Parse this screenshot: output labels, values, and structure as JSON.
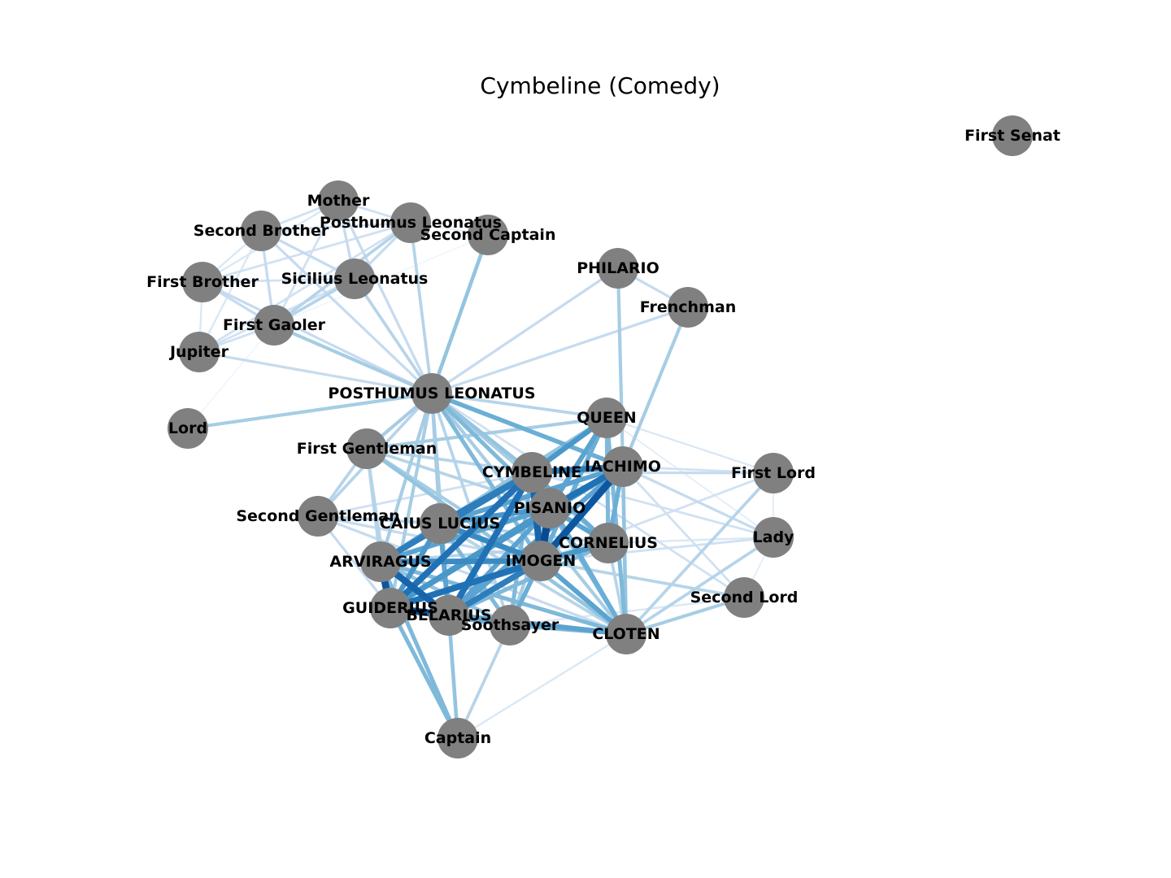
{
  "title": "Cymbeline (Comedy)",
  "style": {
    "node_color": "#808080",
    "label_color": "#000000",
    "edge_colormap": "Blues",
    "edge_colormap_stops": [
      "#f7fbff",
      "#deebf7",
      "#c6dbef",
      "#9ecae1",
      "#6baed6",
      "#4292c6",
      "#2171b5",
      "#08519c",
      "#08306b"
    ]
  },
  "nodes": [
    {
      "id": "first_senat",
      "label": "First Senat"
    },
    {
      "id": "mother",
      "label": "Mother"
    },
    {
      "id": "second_brother",
      "label": "Second Brother"
    },
    {
      "id": "posthumus_small",
      "label": "Posthumus Leonatus"
    },
    {
      "id": "second_captain",
      "label": "Second Captain"
    },
    {
      "id": "first_brother",
      "label": "First Brother"
    },
    {
      "id": "sicilius",
      "label": "Sicilius Leonatus"
    },
    {
      "id": "philario",
      "label": "PHILARIO"
    },
    {
      "id": "frenchman",
      "label": "Frenchman"
    },
    {
      "id": "first_gaoler",
      "label": "First Gaoler"
    },
    {
      "id": "jupiter",
      "label": "Jupiter"
    },
    {
      "id": "posthumus",
      "label": "POSTHUMUS LEONATUS"
    },
    {
      "id": "lord",
      "label": "Lord"
    },
    {
      "id": "queen",
      "label": "QUEEN"
    },
    {
      "id": "first_gentleman",
      "label": "First Gentleman"
    },
    {
      "id": "iachimo",
      "label": "IACHIMO"
    },
    {
      "id": "cymbeline",
      "label": "CYMBELINE"
    },
    {
      "id": "first_lord",
      "label": "First Lord"
    },
    {
      "id": "pisanio",
      "label": "PISANIO"
    },
    {
      "id": "second_gentleman",
      "label": "Second Gentleman"
    },
    {
      "id": "caius_lucius",
      "label": "CAIUS LUCIUS"
    },
    {
      "id": "lady",
      "label": "Lady"
    },
    {
      "id": "cornelius",
      "label": "CORNELIUS"
    },
    {
      "id": "imogen",
      "label": "IMOGEN"
    },
    {
      "id": "arviragus",
      "label": "ARVIRAGUS"
    },
    {
      "id": "second_lord",
      "label": "Second Lord"
    },
    {
      "id": "guiderius",
      "label": "GUIDERIUS"
    },
    {
      "id": "belarius",
      "label": "BELARIUS"
    },
    {
      "id": "soothsayer",
      "label": "Soothsayer"
    },
    {
      "id": "cloten",
      "label": "CLOTEN"
    },
    {
      "id": "captain",
      "label": "Captain"
    }
  ],
  "edges": [
    {
      "source": "mother",
      "target": "second_brother",
      "weight": 0.2
    },
    {
      "source": "mother",
      "target": "posthumus_small",
      "weight": 0.2
    },
    {
      "source": "mother",
      "target": "sicilius",
      "weight": 0.25
    },
    {
      "source": "mother",
      "target": "first_gaoler",
      "weight": 0.2
    },
    {
      "source": "mother",
      "target": "first_brother",
      "weight": 0.15
    },
    {
      "source": "mother",
      "target": "posthumus",
      "weight": 0.25
    },
    {
      "source": "second_brother",
      "target": "posthumus_small",
      "weight": 0.2
    },
    {
      "source": "second_brother",
      "target": "sicilius",
      "weight": 0.25
    },
    {
      "source": "second_brother",
      "target": "first_gaoler",
      "weight": 0.25
    },
    {
      "source": "second_brother",
      "target": "first_brother",
      "weight": 0.15
    },
    {
      "source": "second_brother",
      "target": "jupiter",
      "weight": 0.15
    },
    {
      "source": "second_brother",
      "target": "posthumus",
      "weight": 0.25
    },
    {
      "source": "posthumus_small",
      "target": "sicilius",
      "weight": 0.25
    },
    {
      "source": "posthumus_small",
      "target": "first_gaoler",
      "weight": 0.3
    },
    {
      "source": "posthumus_small",
      "target": "first_brother",
      "weight": 0.2
    },
    {
      "source": "posthumus_small",
      "target": "jupiter",
      "weight": 0.2
    },
    {
      "source": "posthumus_small",
      "target": "posthumus",
      "weight": 0.3
    },
    {
      "source": "posthumus_small",
      "target": "second_captain",
      "weight": 0.1
    },
    {
      "source": "second_captain",
      "target": "posthumus",
      "weight": 0.4
    },
    {
      "source": "second_captain",
      "target": "first_gaoler",
      "weight": 0.05
    },
    {
      "source": "first_brother",
      "target": "sicilius",
      "weight": 0.2
    },
    {
      "source": "first_brother",
      "target": "first_gaoler",
      "weight": 0.25
    },
    {
      "source": "first_brother",
      "target": "jupiter",
      "weight": 0.15
    },
    {
      "source": "first_brother",
      "target": "posthumus",
      "weight": 0.25
    },
    {
      "source": "sicilius",
      "target": "first_gaoler",
      "weight": 0.3
    },
    {
      "source": "sicilius",
      "target": "jupiter",
      "weight": 0.2
    },
    {
      "source": "sicilius",
      "target": "posthumus",
      "weight": 0.3
    },
    {
      "source": "first_gaoler",
      "target": "jupiter",
      "weight": 0.2
    },
    {
      "source": "first_gaoler",
      "target": "posthumus",
      "weight": 0.35
    },
    {
      "source": "jupiter",
      "target": "posthumus",
      "weight": 0.25
    },
    {
      "source": "lord",
      "target": "posthumus",
      "weight": 0.35
    },
    {
      "source": "lord",
      "target": "first_gaoler",
      "weight": 0.05
    },
    {
      "source": "philario",
      "target": "frenchman",
      "weight": 0.25
    },
    {
      "source": "philario",
      "target": "posthumus",
      "weight": 0.25
    },
    {
      "source": "philario",
      "target": "iachimo",
      "weight": 0.35
    },
    {
      "source": "frenchman",
      "target": "posthumus",
      "weight": 0.25
    },
    {
      "source": "frenchman",
      "target": "iachimo",
      "weight": 0.35
    },
    {
      "source": "posthumus",
      "target": "queen",
      "weight": 0.3
    },
    {
      "source": "posthumus",
      "target": "first_gentleman",
      "weight": 0.35
    },
    {
      "source": "posthumus",
      "target": "iachimo",
      "weight": 0.5
    },
    {
      "source": "posthumus",
      "target": "cymbeline",
      "weight": 0.4
    },
    {
      "source": "posthumus",
      "target": "pisanio",
      "weight": 0.45
    },
    {
      "source": "posthumus",
      "target": "imogen",
      "weight": 0.45
    },
    {
      "source": "posthumus",
      "target": "second_gentleman",
      "weight": 0.3
    },
    {
      "source": "posthumus",
      "target": "caius_lucius",
      "weight": 0.35
    },
    {
      "source": "posthumus",
      "target": "cornelius",
      "weight": 0.35
    },
    {
      "source": "posthumus",
      "target": "arviragus",
      "weight": 0.35
    },
    {
      "source": "posthumus",
      "target": "guiderius",
      "weight": 0.35
    },
    {
      "source": "posthumus",
      "target": "belarius",
      "weight": 0.35
    },
    {
      "source": "posthumus",
      "target": "soothsayer",
      "weight": 0.3
    },
    {
      "source": "posthumus",
      "target": "cloten",
      "weight": 0.35
    },
    {
      "source": "posthumus",
      "target": "second_lord",
      "weight": 0.2
    },
    {
      "source": "queen",
      "target": "first_gentleman",
      "weight": 0.35
    },
    {
      "source": "queen",
      "target": "cymbeline",
      "weight": 0.6
    },
    {
      "source": "queen",
      "target": "pisanio",
      "weight": 0.55
    },
    {
      "source": "queen",
      "target": "imogen",
      "weight": 0.5
    },
    {
      "source": "queen",
      "target": "cloten",
      "weight": 0.45
    },
    {
      "source": "queen",
      "target": "cornelius",
      "weight": 0.45
    },
    {
      "source": "queen",
      "target": "caius_lucius",
      "weight": 0.4
    },
    {
      "source": "queen",
      "target": "first_lord",
      "weight": 0.15
    },
    {
      "source": "queen",
      "target": "lady",
      "weight": 0.1
    },
    {
      "source": "first_gentleman",
      "target": "second_gentleman",
      "weight": 0.3
    },
    {
      "source": "first_gentleman",
      "target": "imogen",
      "weight": 0.35
    },
    {
      "source": "first_gentleman",
      "target": "cymbeline",
      "weight": 0.3
    },
    {
      "source": "first_gentleman",
      "target": "pisanio",
      "weight": 0.3
    },
    {
      "source": "first_gentleman",
      "target": "cloten",
      "weight": 0.4
    },
    {
      "source": "first_gentleman",
      "target": "guiderius",
      "weight": 0.3
    },
    {
      "source": "first_gentleman",
      "target": "arviragus",
      "weight": 0.3
    },
    {
      "source": "iachimo",
      "target": "imogen",
      "weight": 0.85
    },
    {
      "source": "iachimo",
      "target": "pisanio",
      "weight": 0.75
    },
    {
      "source": "iachimo",
      "target": "cymbeline",
      "weight": 0.7
    },
    {
      "source": "iachimo",
      "target": "guiderius",
      "weight": 0.6
    },
    {
      "source": "iachimo",
      "target": "belarius",
      "weight": 0.55
    },
    {
      "source": "iachimo",
      "target": "cloten",
      "weight": 0.4
    },
    {
      "source": "iachimo",
      "target": "first_lord",
      "weight": 0.2
    },
    {
      "source": "iachimo",
      "target": "lady",
      "weight": 0.25
    },
    {
      "source": "iachimo",
      "target": "second_lord",
      "weight": 0.2
    },
    {
      "source": "iachimo",
      "target": "caius_lucius",
      "weight": 0.55
    },
    {
      "source": "iachimo",
      "target": "cornelius",
      "weight": 0.5
    },
    {
      "source": "cymbeline",
      "target": "pisanio",
      "weight": 0.8
    },
    {
      "source": "cymbeline",
      "target": "imogen",
      "weight": 0.8
    },
    {
      "source": "cymbeline",
      "target": "caius_lucius",
      "weight": 0.7
    },
    {
      "source": "cymbeline",
      "target": "guiderius",
      "weight": 0.75
    },
    {
      "source": "cymbeline",
      "target": "arviragus",
      "weight": 0.7
    },
    {
      "source": "cymbeline",
      "target": "belarius",
      "weight": 0.75
    },
    {
      "source": "cymbeline",
      "target": "cornelius",
      "weight": 0.5
    },
    {
      "source": "cymbeline",
      "target": "cloten",
      "weight": 0.5
    },
    {
      "source": "cymbeline",
      "target": "soothsayer",
      "weight": 0.45
    },
    {
      "source": "cymbeline",
      "target": "first_lord",
      "weight": 0.25
    },
    {
      "source": "cymbeline",
      "target": "lady",
      "weight": 0.2
    },
    {
      "source": "first_lord",
      "target": "cloten",
      "weight": 0.3
    },
    {
      "source": "first_lord",
      "target": "imogen",
      "weight": 0.2
    },
    {
      "source": "first_lord",
      "target": "lady",
      "weight": 0.1
    },
    {
      "source": "pisanio",
      "target": "imogen",
      "weight": 0.9
    },
    {
      "source": "pisanio",
      "target": "caius_lucius",
      "weight": 0.6
    },
    {
      "source": "pisanio",
      "target": "cornelius",
      "weight": 0.55
    },
    {
      "source": "pisanio",
      "target": "guiderius",
      "weight": 0.6
    },
    {
      "source": "pisanio",
      "target": "belarius",
      "weight": 0.55
    },
    {
      "source": "pisanio",
      "target": "cloten",
      "weight": 0.45
    },
    {
      "source": "pisanio",
      "target": "arviragus",
      "weight": 0.55
    },
    {
      "source": "pisanio",
      "target": "soothsayer",
      "weight": 0.35
    },
    {
      "source": "second_gentleman",
      "target": "caius_lucius",
      "weight": 0.3
    },
    {
      "source": "second_gentleman",
      "target": "imogen",
      "weight": 0.25
    },
    {
      "source": "second_gentleman",
      "target": "cymbeline",
      "weight": 0.2
    },
    {
      "source": "second_gentleman",
      "target": "cloten",
      "weight": 0.25
    },
    {
      "source": "second_gentleman",
      "target": "guiderius",
      "weight": 0.25
    },
    {
      "source": "caius_lucius",
      "target": "imogen",
      "weight": 0.65
    },
    {
      "source": "caius_lucius",
      "target": "guiderius",
      "weight": 0.6
    },
    {
      "source": "caius_lucius",
      "target": "belarius",
      "weight": 0.55
    },
    {
      "source": "caius_lucius",
      "target": "soothsayer",
      "weight": 0.45
    },
    {
      "source": "caius_lucius",
      "target": "arviragus",
      "weight": 0.55
    },
    {
      "source": "caius_lucius",
      "target": "cornelius",
      "weight": 0.3
    },
    {
      "source": "caius_lucius",
      "target": "cloten",
      "weight": 0.3
    },
    {
      "source": "lady",
      "target": "cloten",
      "weight": 0.3
    },
    {
      "source": "lady",
      "target": "imogen",
      "weight": 0.2
    },
    {
      "source": "lady",
      "target": "cornelius",
      "weight": 0.15
    },
    {
      "source": "lady",
      "target": "second_lord",
      "weight": 0.1
    },
    {
      "source": "cornelius",
      "target": "imogen",
      "weight": 0.6
    },
    {
      "source": "cornelius",
      "target": "guiderius",
      "weight": 0.45
    },
    {
      "source": "cornelius",
      "target": "belarius",
      "weight": 0.45
    },
    {
      "source": "cornelius",
      "target": "cloten",
      "weight": 0.3
    },
    {
      "source": "cornelius",
      "target": "arviragus",
      "weight": 0.3
    },
    {
      "source": "imogen",
      "target": "arviragus",
      "weight": 0.65
    },
    {
      "source": "imogen",
      "target": "guiderius",
      "weight": 0.75
    },
    {
      "source": "imogen",
      "target": "belarius",
      "weight": 0.7
    },
    {
      "source": "imogen",
      "target": "soothsayer",
      "weight": 0.5
    },
    {
      "source": "imogen",
      "target": "cloten",
      "weight": 0.55
    },
    {
      "source": "imogen",
      "target": "second_lord",
      "weight": 0.3
    },
    {
      "source": "arviragus",
      "target": "guiderius",
      "weight": 0.85
    },
    {
      "source": "arviragus",
      "target": "belarius",
      "weight": 0.8
    },
    {
      "source": "arviragus",
      "target": "soothsayer",
      "weight": 0.4
    },
    {
      "source": "arviragus",
      "target": "cloten",
      "weight": 0.45
    },
    {
      "source": "arviragus",
      "target": "captain",
      "weight": 0.45
    },
    {
      "source": "second_lord",
      "target": "cloten",
      "weight": 0.35
    },
    {
      "source": "second_lord",
      "target": "soothsayer",
      "weight": 0.15
    },
    {
      "source": "guiderius",
      "target": "belarius",
      "weight": 0.85
    },
    {
      "source": "guiderius",
      "target": "soothsayer",
      "weight": 0.5
    },
    {
      "source": "guiderius",
      "target": "cloten",
      "weight": 0.55
    },
    {
      "source": "guiderius",
      "target": "captain",
      "weight": 0.45
    },
    {
      "source": "belarius",
      "target": "soothsayer",
      "weight": 0.45
    },
    {
      "source": "belarius",
      "target": "cloten",
      "weight": 0.5
    },
    {
      "source": "belarius",
      "target": "captain",
      "weight": 0.4
    },
    {
      "source": "soothsayer",
      "target": "cloten",
      "weight": 0.45
    },
    {
      "source": "soothsayer",
      "target": "captain",
      "weight": 0.3
    },
    {
      "source": "cloten",
      "target": "captain",
      "weight": 0.15
    }
  ]
}
